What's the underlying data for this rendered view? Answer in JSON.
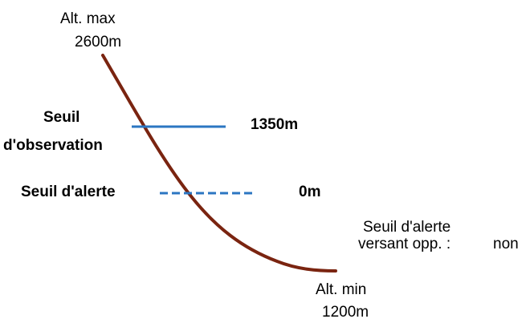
{
  "alt_max": {
    "label": "Alt. max",
    "value": "2600m"
  },
  "alt_min": {
    "label": "Alt. min",
    "value": "1200m"
  },
  "seuil_observation": {
    "label_line1": "Seuil",
    "label_line2": "d'observation",
    "value": "1350m"
  },
  "seuil_alerte": {
    "label": "Seuil d'alerte",
    "value": "0m"
  },
  "versant_oppose": {
    "line1": "Seuil d'alerte",
    "line2_label": "versant opp. :",
    "line2_value": "non"
  },
  "colors": {
    "slope": "#7a2410",
    "observation_line": "#2b76c2",
    "alert_line": "#2b76c2"
  }
}
